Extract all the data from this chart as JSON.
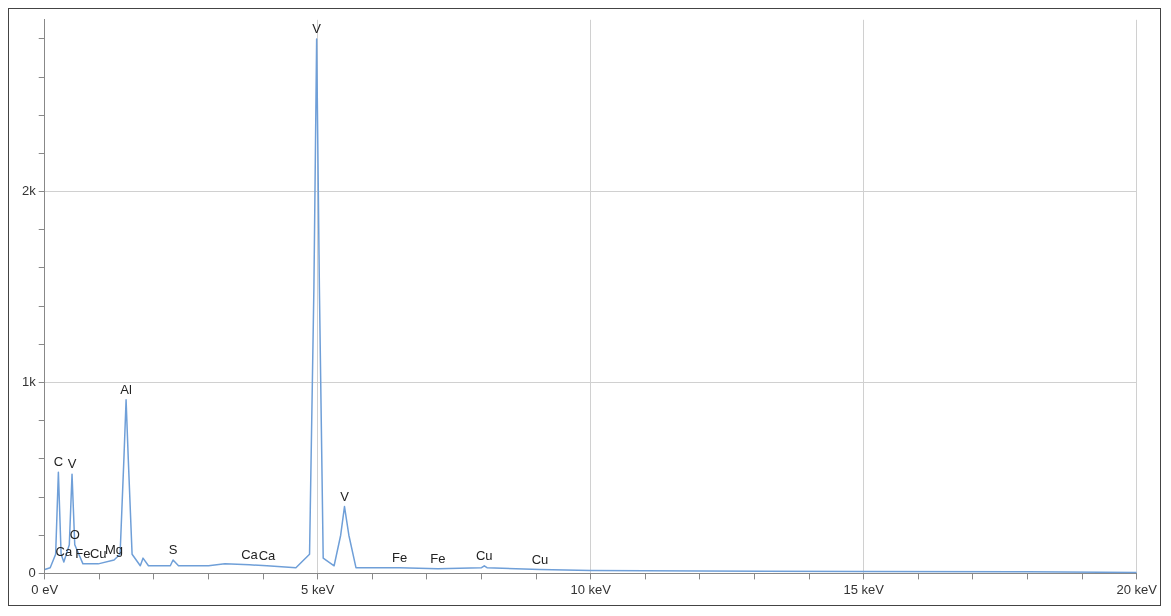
{
  "chart_data": {
    "type": "line",
    "x": [
      0,
      0.1,
      0.2,
      0.25,
      0.3,
      0.35,
      0.45,
      0.5,
      0.55,
      0.7,
      0.98,
      1.27,
      1.38,
      1.45,
      1.49,
      1.53,
      1.6,
      1.75,
      1.8,
      1.9,
      2.3,
      2.35,
      2.45,
      3.0,
      3.3,
      3.75,
      4.07,
      4.6,
      4.85,
      4.93,
      4.98,
      5.03,
      5.1,
      5.3,
      5.42,
      5.49,
      5.57,
      5.7,
      6.5,
      7.2,
      8.0,
      8.05,
      8.1,
      9.07,
      10,
      12,
      15,
      18,
      20
    ],
    "series": [
      {
        "color": "#6f9fd8",
        "values": [
          20,
          30,
          100,
          530,
          100,
          60,
          150,
          520,
          150,
          50,
          50,
          70,
          100,
          600,
          910,
          600,
          100,
          40,
          80,
          40,
          40,
          70,
          40,
          40,
          50,
          45,
          40,
          30,
          100,
          1500,
          2800,
          1500,
          80,
          40,
          200,
          350,
          200,
          30,
          30,
          25,
          30,
          40,
          30,
          20,
          15,
          12,
          10,
          8,
          5
        ]
      }
    ],
    "xlim": [
      0,
      20
    ],
    "xticks": [
      {
        "value": 0,
        "label": "0 eV"
      },
      {
        "value": 1,
        "label": null
      },
      {
        "value": 2,
        "label": null
      },
      {
        "value": 3,
        "label": null
      },
      {
        "value": 4,
        "label": null
      },
      {
        "value": 5,
        "label": "5 keV"
      },
      {
        "value": 6,
        "label": null
      },
      {
        "value": 7,
        "label": null
      },
      {
        "value": 8,
        "label": null
      },
      {
        "value": 9,
        "label": null
      },
      {
        "value": 10,
        "label": "10 keV"
      },
      {
        "value": 11,
        "label": null
      },
      {
        "value": 12,
        "label": null
      },
      {
        "value": 13,
        "label": null
      },
      {
        "value": 14,
        "label": null
      },
      {
        "value": 15,
        "label": "15 keV"
      },
      {
        "value": 16,
        "label": null
      },
      {
        "value": 17,
        "label": null
      },
      {
        "value": 18,
        "label": null
      },
      {
        "value": 19,
        "label": null
      },
      {
        "value": 20,
        "label": "20 keV"
      }
    ],
    "ylim": [
      0,
      2900
    ],
    "yticks": [
      0,
      {
        "value": 200,
        "label": null
      },
      {
        "value": 400,
        "label": null
      },
      {
        "value": 600,
        "label": null
      },
      {
        "value": 800,
        "label": null
      },
      {
        "value": 1000,
        "label": "1k"
      },
      {
        "value": 1200,
        "label": null
      },
      {
        "value": 1400,
        "label": null
      },
      {
        "value": 1600,
        "label": null
      },
      {
        "value": 1800,
        "label": null
      },
      {
        "value": 2000,
        "label": "2k"
      },
      {
        "value": 2200,
        "label": null
      },
      {
        "value": 2400,
        "label": null
      },
      {
        "value": 2600,
        "label": null
      },
      {
        "value": 2800,
        "label": null
      }
    ],
    "grid": true,
    "marker": "none",
    "line_style": "solid",
    "legend": false,
    "annotations": [
      {
        "text": "C",
        "x": 0.25,
        "y": 530
      },
      {
        "text": "O",
        "x": 0.55,
        "y": 150
      },
      {
        "text": "V",
        "x": 0.5,
        "y": 520
      },
      {
        "text": "Ca",
        "x": 0.35,
        "y": 60
      },
      {
        "text": "Fe",
        "x": 0.7,
        "y": 50
      },
      {
        "text": "Cu",
        "x": 0.98,
        "y": 50
      },
      {
        "text": "Mg",
        "x": 1.27,
        "y": 70
      },
      {
        "text": "Al",
        "x": 1.49,
        "y": 910
      },
      {
        "text": "S",
        "x": 2.35,
        "y": 70
      },
      {
        "text": "Ca",
        "x": 3.75,
        "y": 45
      },
      {
        "text": "Ca",
        "x": 4.07,
        "y": 40
      },
      {
        "text": "V",
        "x": 4.98,
        "y": 2800
      },
      {
        "text": "V",
        "x": 5.49,
        "y": 350
      },
      {
        "text": "Fe",
        "x": 6.5,
        "y": 30
      },
      {
        "text": "Fe",
        "x": 7.2,
        "y": 25
      },
      {
        "text": "Cu",
        "x": 8.05,
        "y": 40
      },
      {
        "text": "Cu",
        "x": 9.07,
        "y": 20
      }
    ]
  }
}
